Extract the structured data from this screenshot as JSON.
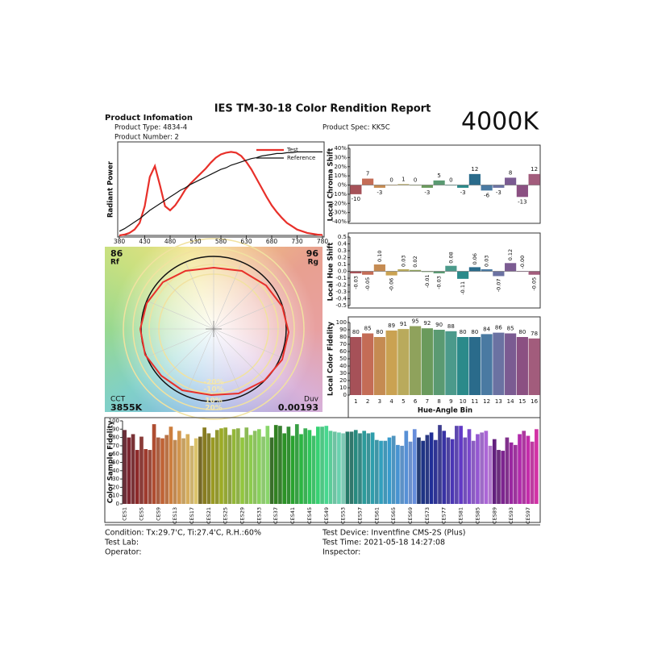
{
  "header": {
    "title": "IES TM-30-18 Color Rendition Report",
    "section": "Product Infomation",
    "product_type": "Product Type: 4834-4",
    "product_number": "Product Number: 2",
    "product_spec": "Product Spec: KK5C",
    "cct_badge": "4000K"
  },
  "color_vector": {
    "rf": "86",
    "rf_label": "Rf",
    "rg": "96",
    "rg_label": "Rg",
    "cct_label": "CCT",
    "cct": "3855K",
    "duv_label": "Duv",
    "duv": "0.00193",
    "rings": [
      "-20%",
      "-10%",
      "10%",
      "20%"
    ]
  },
  "footer": {
    "condition": "Condition: Tx:29.7'C, Ti:27.4'C, R.H.:60%",
    "test_lab": "Test Lab:",
    "operator": "Operator:",
    "test_device": "Test Device: Inventfine CMS-2S (Plus)",
    "test_time": "Test Time: 2021-05-18 14:27:08",
    "inspector": "Inspector:"
  },
  "chart_data": [
    {
      "type": "line",
      "y_label": "Radiant Power",
      "x": [
        380,
        390,
        400,
        410,
        420,
        430,
        440,
        450,
        460,
        470,
        480,
        490,
        500,
        510,
        520,
        530,
        540,
        550,
        560,
        570,
        580,
        590,
        600,
        610,
        620,
        630,
        640,
        650,
        660,
        670,
        680,
        690,
        700,
        710,
        720,
        730,
        740,
        750,
        760,
        770,
        780
      ],
      "series": [
        {
          "name": "Test",
          "color": "#e8302a",
          "values": [
            0.0,
            0.01,
            0.03,
            0.07,
            0.15,
            0.35,
            0.7,
            0.83,
            0.6,
            0.35,
            0.3,
            0.36,
            0.45,
            0.55,
            0.62,
            0.68,
            0.74,
            0.8,
            0.87,
            0.93,
            0.97,
            0.99,
            1.0,
            0.99,
            0.95,
            0.88,
            0.79,
            0.68,
            0.57,
            0.46,
            0.36,
            0.28,
            0.21,
            0.15,
            0.11,
            0.07,
            0.05,
            0.03,
            0.02,
            0.01,
            0.005
          ]
        },
        {
          "name": "Reference",
          "color": "#111111",
          "values": [
            0.05,
            0.08,
            0.12,
            0.16,
            0.2,
            0.25,
            0.3,
            0.34,
            0.38,
            0.42,
            0.46,
            0.5,
            0.54,
            0.57,
            0.61,
            0.64,
            0.67,
            0.7,
            0.73,
            0.76,
            0.79,
            0.81,
            0.84,
            0.86,
            0.88,
            0.9,
            0.92,
            0.93,
            0.95,
            0.96,
            0.97,
            0.98,
            0.98,
            0.99,
            0.99,
            1.0,
            1.0,
            1.0,
            1.0,
            1.0,
            1.0
          ]
        }
      ],
      "xlim": [
        380,
        780
      ],
      "xticks": [
        380,
        430,
        480,
        530,
        580,
        630,
        680,
        730,
        780
      ],
      "ylim": [
        0,
        1.1
      ]
    },
    {
      "type": "bar",
      "y_label": "Local Chroma Shift",
      "values": [
        -10,
        7,
        -3,
        0,
        1,
        0,
        -3,
        5,
        0,
        -3,
        12,
        -6,
        -3,
        8,
        -13,
        12
      ],
      "colors": [
        "#a65158",
        "#c46c56",
        "#c58b52",
        "#caa252",
        "#b9aa5c",
        "#8fa25c",
        "#6a9a5c",
        "#5a9a72",
        "#4b9a8b",
        "#2b8a8a",
        "#2a6b8b",
        "#4a7aa2",
        "#6b72a2",
        "#7b5b92",
        "#8b5082",
        "#a25c7c"
      ],
      "ylim": [
        -40,
        40
      ],
      "yticks": [
        {
          "value": 40,
          "label": "40%"
        },
        {
          "value": 30,
          "label": "30%"
        },
        {
          "value": 20,
          "label": "20%"
        },
        {
          "value": 10,
          "label": "10%"
        },
        {
          "value": 0,
          "label": "0%"
        },
        {
          "value": -10,
          "label": "-10%"
        },
        {
          "value": -20,
          "label": "-20%"
        },
        {
          "value": -30,
          "label": "-30%"
        },
        {
          "value": -40,
          "label": "-40%"
        }
      ]
    },
    {
      "type": "bar",
      "y_label": "Local Hue Shift",
      "values": [
        -0.03,
        -0.05,
        0.1,
        -0.06,
        0.03,
        0.02,
        -0.01,
        -0.03,
        0.08,
        -0.11,
        0.06,
        0.03,
        -0.07,
        0.12,
        0,
        -0.05
      ],
      "value_labels": [
        "-0.03",
        "-0.05",
        "0.10",
        "-0.06",
        "0.03",
        "0.02",
        "-0.01",
        "-0.03",
        "0.08",
        "-0.11",
        "0.06",
        "0.03",
        "-0.07",
        "0.12",
        "-0.00",
        "-0.05"
      ],
      "colors": [
        "#a65158",
        "#c46c56",
        "#c58b52",
        "#caa252",
        "#b9aa5c",
        "#8fa25c",
        "#6a9a5c",
        "#5a9a72",
        "#4b9a8b",
        "#2b8a8a",
        "#2a6b8b",
        "#4a7aa2",
        "#6b72a2",
        "#7b5b92",
        "#8b5082",
        "#a25c7c"
      ],
      "ylim": [
        -0.5,
        0.5
      ],
      "yticks": [
        0.5,
        0.4,
        0.3,
        0.2,
        0.1,
        {
          "value": 0,
          "label": "0.0"
        },
        -0.1,
        -0.2,
        -0.3,
        -0.4,
        -0.5
      ]
    },
    {
      "type": "bar",
      "y_label": "Local Color Fidelity",
      "x_label": "Hue-Angle Bin",
      "categories": [
        "1",
        "2",
        "3",
        "4",
        "5",
        "6",
        "7",
        "8",
        "9",
        "10",
        "11",
        "12",
        "13",
        "14",
        "15",
        "16"
      ],
      "values": [
        80,
        85,
        80,
        89,
        91,
        95,
        92,
        90,
        88,
        80,
        80,
        84,
        86,
        85,
        80,
        78
      ],
      "colors": [
        "#a65158",
        "#c46c56",
        "#c58b52",
        "#caa252",
        "#b9aa5c",
        "#8fa25c",
        "#6a9a5c",
        "#5a9a72",
        "#4b9a8b",
        "#2b8a8a",
        "#2a6b8b",
        "#4a7aa2",
        "#6b72a2",
        "#7b5b92",
        "#8b5082",
        "#a25c7c"
      ],
      "ylim": [
        0,
        100
      ],
      "yticks": [
        0,
        10,
        20,
        30,
        40,
        50,
        60,
        70,
        80,
        90,
        100
      ]
    },
    {
      "type": "bar",
      "y_label": "Color Sample Fidelity",
      "categories": [
        "CES1",
        null,
        null,
        null,
        "CES5",
        null,
        null,
        null,
        "CES9",
        null,
        null,
        null,
        "CES13",
        null,
        null,
        null,
        "CES17",
        null,
        null,
        null,
        "CES21",
        null,
        null,
        null,
        "CES25",
        null,
        null,
        null,
        "CES29",
        null,
        null,
        null,
        "CES33",
        null,
        null,
        null,
        "CES37",
        null,
        null,
        null,
        "CES41",
        null,
        null,
        null,
        "CES45",
        null,
        null,
        null,
        "CES49",
        null,
        null,
        null,
        "CES53",
        null,
        null,
        null,
        "CES57",
        null,
        null,
        null,
        "CES61",
        null,
        null,
        null,
        "CES65",
        null,
        null,
        null,
        "CES69",
        null,
        null,
        null,
        "CES73",
        null,
        null,
        null,
        "CES77",
        null,
        null,
        null,
        "CES81",
        null,
        null,
        null,
        "CES85",
        null,
        null,
        null,
        "CES89",
        null,
        null,
        null,
        "CES93",
        null,
        null,
        null,
        "CES97",
        null,
        null
      ],
      "values": [
        89,
        80,
        84,
        65,
        81,
        66,
        65,
        96,
        80,
        79,
        83,
        93,
        77,
        88,
        79,
        84,
        70,
        79,
        81,
        92,
        85,
        80,
        89,
        91,
        92,
        83,
        90,
        91,
        80,
        92,
        83,
        88,
        90,
        81,
        94,
        80,
        95,
        94,
        85,
        93,
        82,
        96,
        84,
        91,
        89,
        82,
        93,
        93,
        94,
        88,
        87,
        86,
        85,
        87,
        87,
        89,
        85,
        88,
        85,
        86,
        77,
        76,
        76,
        80,
        82,
        71,
        70,
        88,
        75,
        90,
        80,
        76,
        83,
        86,
        77,
        95,
        88,
        80,
        78,
        94,
        94,
        80,
        90,
        76,
        84,
        86,
        88,
        70,
        78,
        65,
        64,
        80,
        74,
        71,
        84,
        88,
        82,
        75,
        90
      ],
      "ylim": [
        0,
        100
      ],
      "yticks": [
        0,
        10,
        20,
        30,
        40,
        50,
        60,
        70,
        80,
        90,
        100
      ]
    }
  ]
}
